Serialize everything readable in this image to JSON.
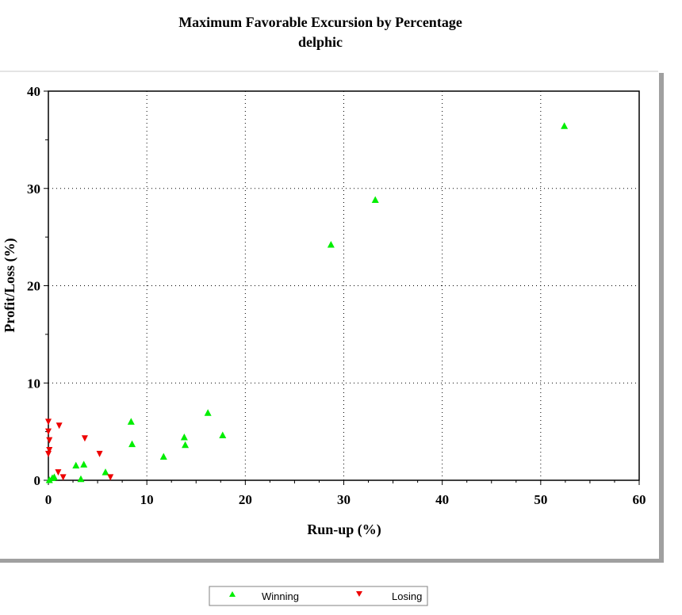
{
  "chart_data": {
    "type": "scatter",
    "title": "Maximum Favorable Excursion by Percentage",
    "subtitle": "delphic",
    "xlabel": "Run-up (%)",
    "ylabel": "Profit/Loss (%)",
    "xlim": [
      0,
      60
    ],
    "ylim": [
      0,
      40
    ],
    "xticks": [
      0,
      10,
      20,
      30,
      40,
      50,
      60
    ],
    "yticks": [
      0,
      10,
      20,
      30,
      40
    ],
    "grid": true,
    "legend_position": "bottom",
    "series": [
      {
        "name": "Winning",
        "marker": "triangle-up",
        "color": "#00ee00",
        "points": [
          [
            0.1,
            0.0
          ],
          [
            0.4,
            0.2
          ],
          [
            0.6,
            0.3
          ],
          [
            2.8,
            1.5
          ],
          [
            3.6,
            1.6
          ],
          [
            3.3,
            0.1
          ],
          [
            5.8,
            0.8
          ],
          [
            8.4,
            6.0
          ],
          [
            8.5,
            3.7
          ],
          [
            11.7,
            2.4
          ],
          [
            13.8,
            4.4
          ],
          [
            13.9,
            3.6
          ],
          [
            16.2,
            6.9
          ],
          [
            17.7,
            4.6
          ],
          [
            28.7,
            24.2
          ],
          [
            33.2,
            28.8
          ],
          [
            52.4,
            36.4
          ]
        ]
      },
      {
        "name": "Losing",
        "marker": "triangle-down",
        "color": "#ee0000",
        "points": [
          [
            0.0,
            6.0
          ],
          [
            0.0,
            5.0
          ],
          [
            0.1,
            4.1
          ],
          [
            0.1,
            3.1
          ],
          [
            0.0,
            2.7
          ],
          [
            1.1,
            5.6
          ],
          [
            1.0,
            0.8
          ],
          [
            1.5,
            0.3
          ],
          [
            3.7,
            4.3
          ],
          [
            5.2,
            2.7
          ],
          [
            6.3,
            0.3
          ]
        ]
      }
    ]
  }
}
